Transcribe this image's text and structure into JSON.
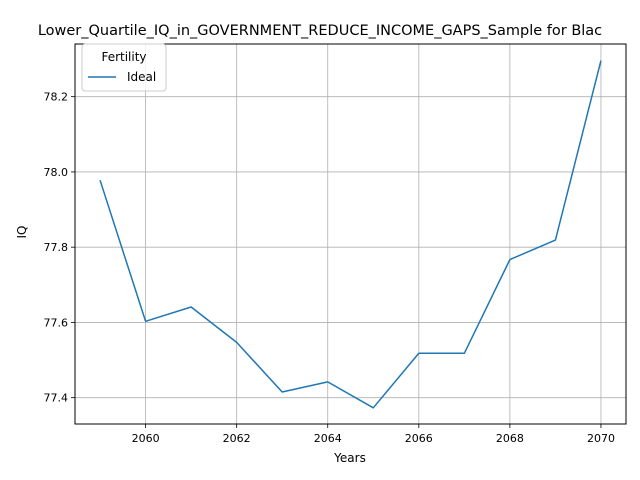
{
  "chart_data": {
    "type": "line",
    "title": "Lower_Quartile_IQ_in_GOVERNMENT_REDUCE_INCOME_GAPS_Sample for Blac",
    "xlabel": "Years",
    "ylabel": "IQ",
    "xlim": [
      2058.45,
      2070.55
    ],
    "ylim": [
      77.33,
      78.34
    ],
    "xticks": [
      2060,
      2062,
      2064,
      2066,
      2068,
      2070
    ],
    "yticks": [
      77.4,
      77.6,
      77.8,
      78.0,
      78.2
    ],
    "xtick_labels": [
      "2060",
      "2062",
      "2064",
      "2066",
      "2068",
      "2070"
    ],
    "ytick_labels": [
      "77.4",
      "77.6",
      "77.8",
      "78.0",
      "78.2"
    ],
    "grid": true,
    "legend": {
      "title": "Fertility",
      "placement": "top-left"
    },
    "series": [
      {
        "name": "Ideal",
        "color": "#1f77b4",
        "x": [
          2059,
          2060,
          2061,
          2062,
          2063,
          2064,
          2065,
          2066,
          2067,
          2068,
          2069,
          2070
        ],
        "values": [
          77.978,
          77.603,
          77.641,
          77.547,
          77.415,
          77.442,
          77.373,
          77.518,
          77.518,
          77.767,
          77.819,
          78.296
        ]
      }
    ]
  }
}
